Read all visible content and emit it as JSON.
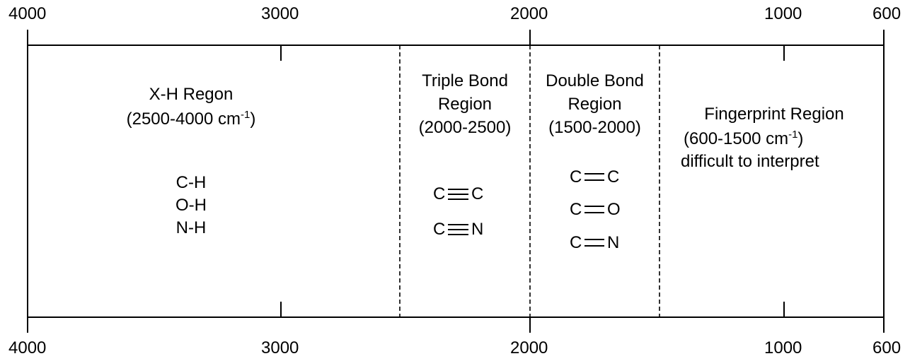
{
  "axis": {
    "ticks": [
      {
        "value": 4000,
        "label": "4000"
      },
      {
        "value": 3000,
        "label": "3000"
      },
      {
        "value": 2000,
        "label": "2000"
      },
      {
        "value": 1000,
        "label": "1000"
      },
      {
        "value": 600,
        "label": "600"
      }
    ],
    "dividers": [
      2500,
      2000,
      1500
    ]
  },
  "regions": {
    "xh": {
      "title": "X-H Regon",
      "range_prefix": "(2500-4000 cm",
      "range_sup": "-1",
      "range_suffix": ")",
      "bonds": [
        "C-H",
        "O-H",
        "N-H"
      ]
    },
    "triple": {
      "title_line1": "Triple Bond",
      "title_line2": "Region",
      "range": "(2000-2500)",
      "bonds": [
        {
          "left": "C",
          "right": "C"
        },
        {
          "left": "C",
          "right": "N"
        }
      ]
    },
    "double": {
      "title_line1": "Double Bond",
      "title_line2": "Region",
      "range": "(1500-2000)",
      "bonds": [
        {
          "left": "C",
          "right": "C"
        },
        {
          "left": "C",
          "right": "O"
        },
        {
          "left": "C",
          "right": "N"
        }
      ]
    },
    "fingerprint": {
      "title": "Fingerprint Region",
      "range_prefix": "(600-1500 cm",
      "range_sup": "-1",
      "range_suffix": ")",
      "note": "difficult to interpret"
    }
  }
}
